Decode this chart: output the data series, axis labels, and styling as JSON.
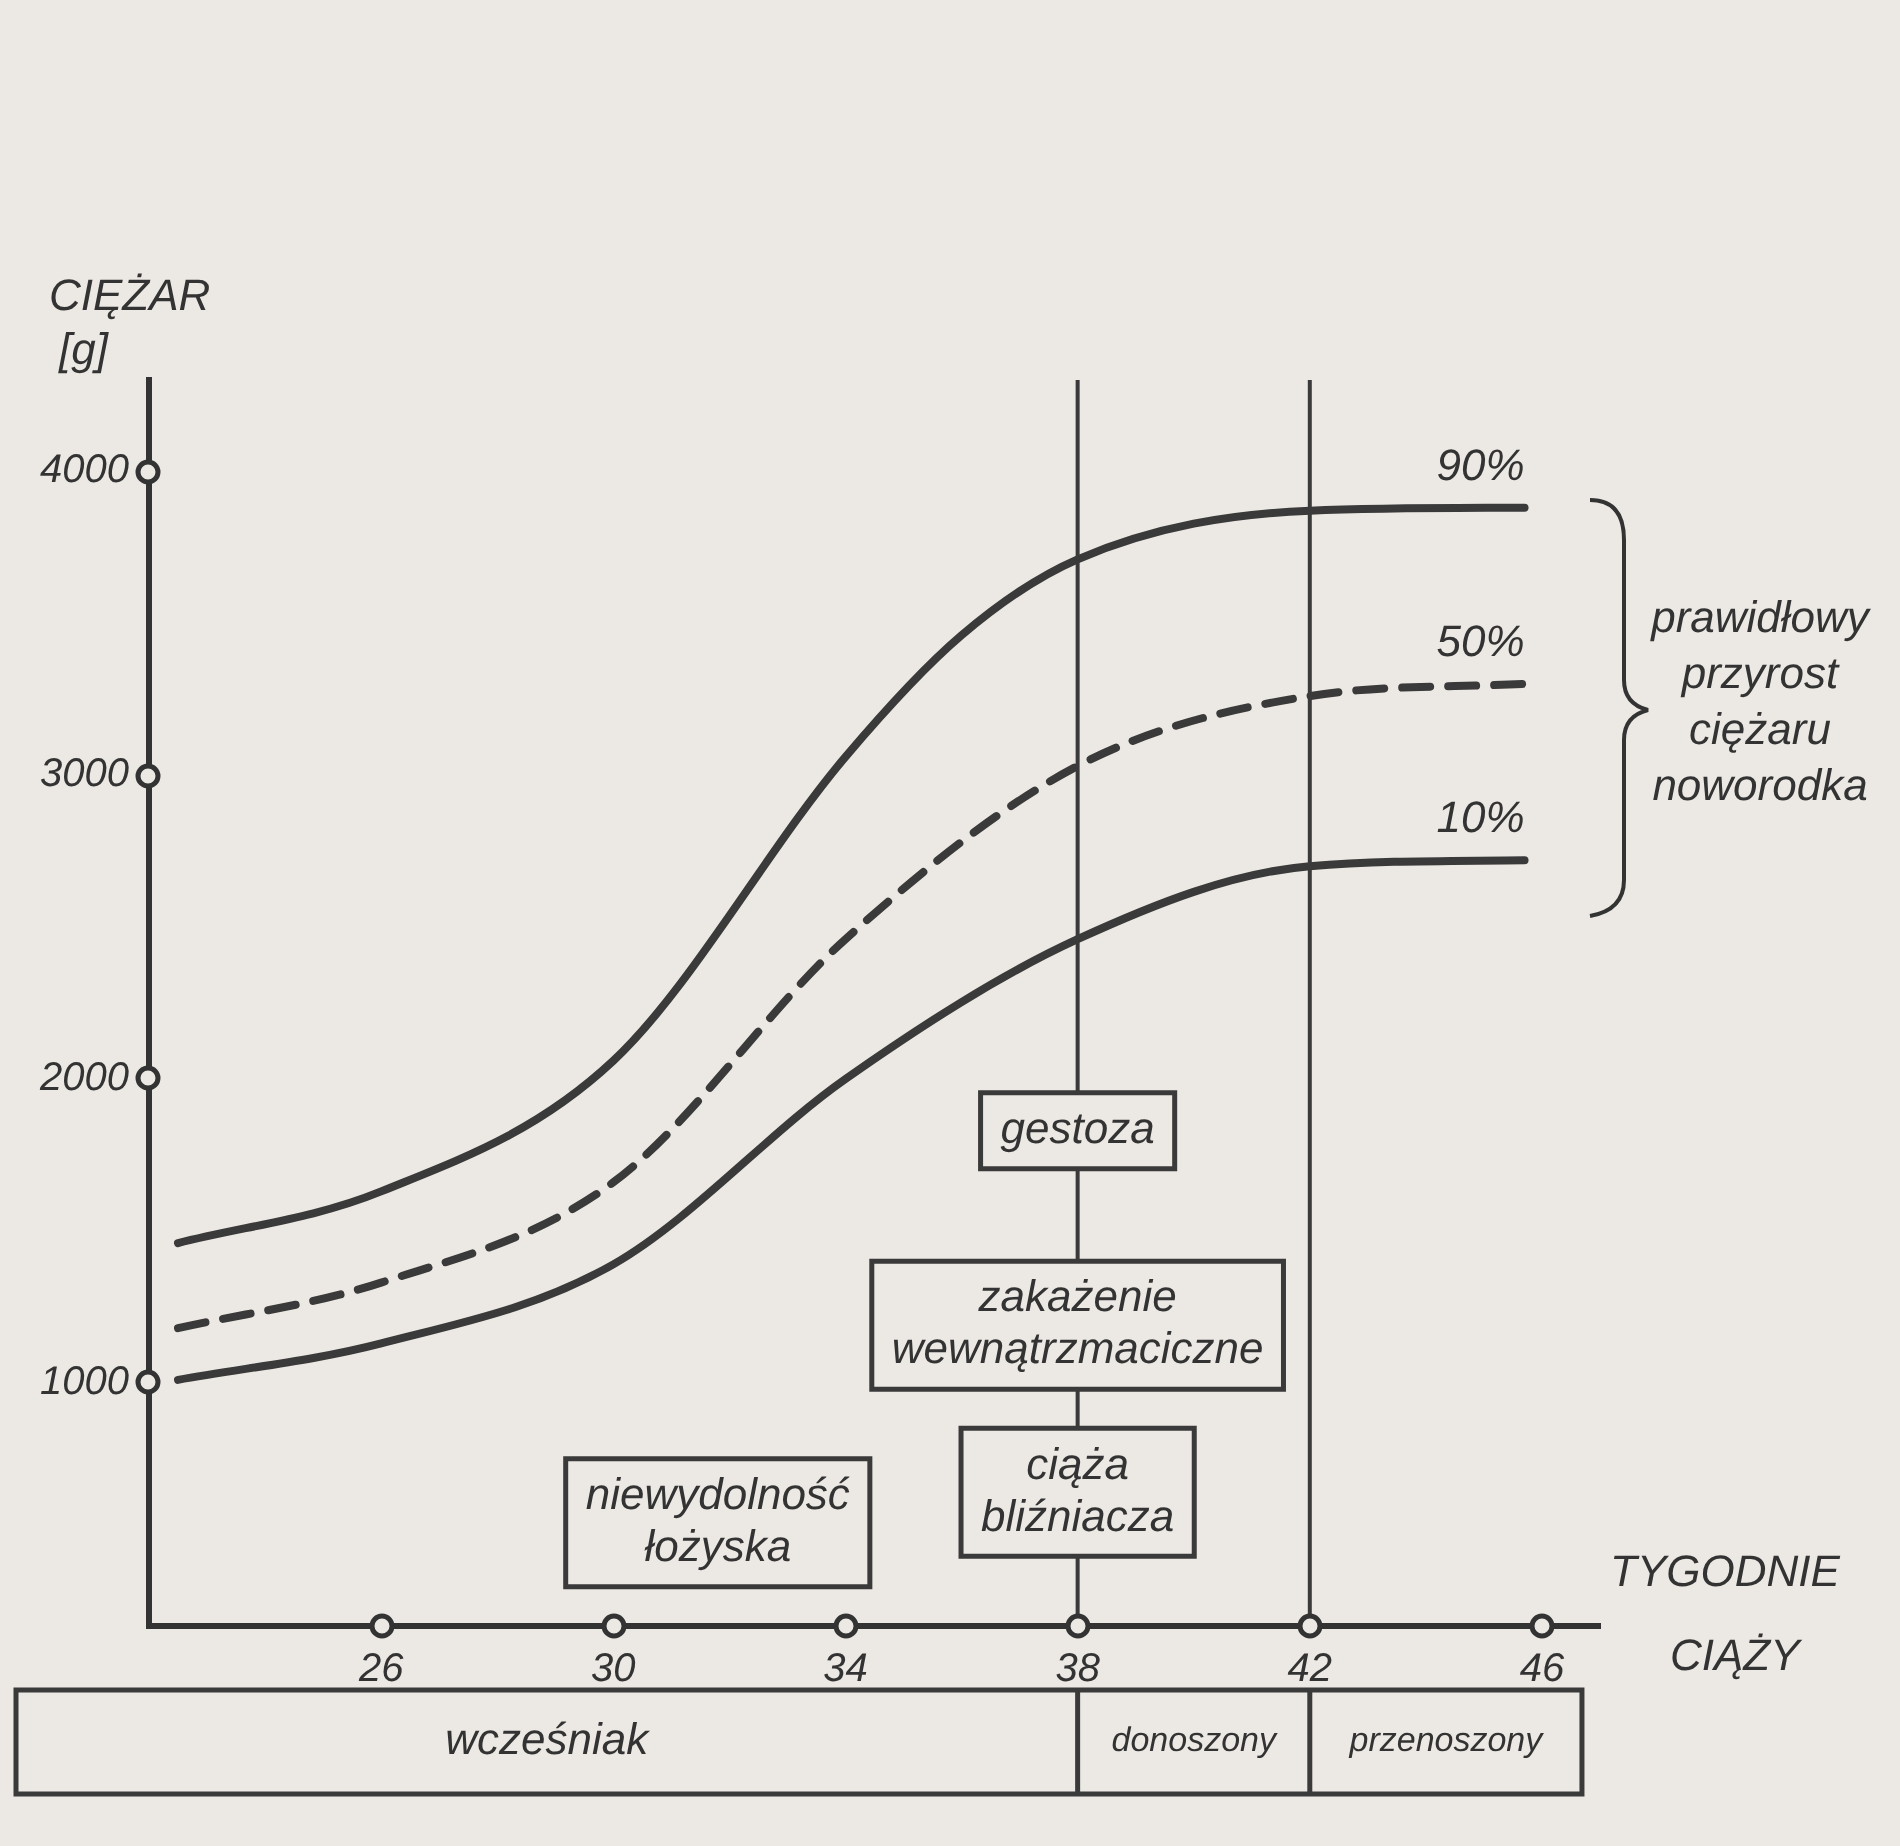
{
  "chart_data": {
    "type": "line",
    "xlabel": "TYGODNIE CIĄŻY",
    "ylabel": "CIĘŻAR [g]",
    "xlim": [
      22,
      47
    ],
    "xticks": [
      26,
      30,
      34,
      38,
      42,
      46
    ],
    "ylim": [
      200,
      4300
    ],
    "yticks": [
      1000,
      2000,
      3000,
      4000
    ],
    "grid": false,
    "legend": false,
    "marker": "none",
    "series": [
      {
        "name": "90%",
        "color": "#3a3a3a",
        "line_style": "solid",
        "x": [
          22.5,
          26,
          30,
          34,
          36,
          38,
          42,
          45.7
        ],
        "values": [
          1460,
          1630,
          2060,
          3060,
          3460,
          3710,
          3870,
          3880
        ]
      },
      {
        "name": "50%",
        "color": "#3a3a3a",
        "line_style": "dashed",
        "x": [
          22.5,
          26,
          30,
          34,
          38,
          42,
          45.7
        ],
        "values": [
          1180,
          1330,
          1660,
          2460,
          3030,
          3260,
          3300
        ]
      },
      {
        "name": "10%",
        "color": "#3a3a3a",
        "line_style": "solid",
        "x": [
          22.5,
          26,
          30,
          34,
          38,
          42,
          45.7
        ],
        "values": [
          1010,
          1130,
          1390,
          2000,
          2460,
          2700,
          2720
        ]
      }
    ],
    "ref_lines": [
      {
        "axis": "x",
        "value": 38,
        "color": "#3a3a3a"
      },
      {
        "axis": "x",
        "value": 42,
        "color": "#3a3a3a"
      }
    ],
    "annotations": [
      "gestoza",
      "zakażenie wewnątrzmaciczne",
      "niewydolność łożyska",
      "ciąża bliźniacza",
      "prawidłowy przyrost ciężaru noworodka",
      "wcześniak",
      "donoszony",
      "przenoszony"
    ]
  }
}
